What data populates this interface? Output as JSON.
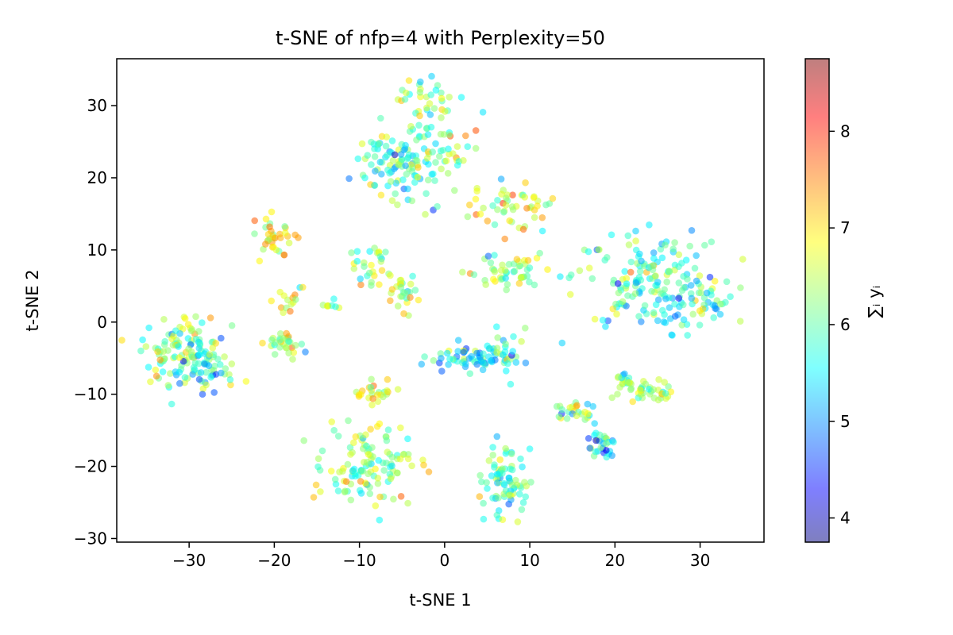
{
  "chart_data": {
    "type": "scatter",
    "title": "t-SNE of nfp=4 with Perplexity=50",
    "xlabel": "t-SNE 1",
    "ylabel": "t-SNE 2",
    "xlim": [
      -38.5,
      37.5
    ],
    "ylim": [
      -30.5,
      36.5
    ],
    "xticks": [
      -30,
      -20,
      -10,
      0,
      10,
      20,
      30
    ],
    "yticks": [
      -30,
      -20,
      -10,
      0,
      10,
      20,
      30
    ],
    "xtick_labels": [
      "−30",
      "−20",
      "−10",
      "0",
      "10",
      "20",
      "30"
    ],
    "ytick_labels": [
      "−30",
      "−20",
      "−10",
      "0",
      "10",
      "20",
      "30"
    ],
    "colorbar": {
      "label": "∑ᵢ yᵢ",
      "range": [
        3.75,
        8.75
      ],
      "ticks": [
        4,
        5,
        6,
        7,
        8
      ],
      "tick_labels": [
        "4",
        "5",
        "6",
        "7",
        "8"
      ],
      "colormap": "jet",
      "alpha": 0.5
    },
    "grid": false,
    "clusters": [
      {
        "cx": -2.5,
        "cy": 31,
        "sx": 1.5,
        "sy": 2.0,
        "n": 30,
        "c": 6.3
      },
      {
        "cx": -6,
        "cy": 22,
        "sx": 2.4,
        "sy": 2.5,
        "n": 90,
        "c": 5.9
      },
      {
        "cx": 0,
        "cy": 23,
        "sx": 2.2,
        "sy": 3.5,
        "n": 60,
        "c": 6.2
      },
      {
        "cx": 8,
        "cy": 16,
        "sx": 2.4,
        "sy": 1.7,
        "n": 50,
        "c": 6.6
      },
      {
        "cx": 7,
        "cy": 7,
        "sx": 2.4,
        "sy": 1.2,
        "n": 50,
        "c": 6.3
      },
      {
        "cx": 24,
        "cy": 6,
        "sx": 4.5,
        "sy": 3.5,
        "n": 170,
        "c": 5.9
      },
      {
        "cx": 30,
        "cy": 2.5,
        "sx": 2.2,
        "sy": 1.0,
        "n": 30,
        "c": 5.8
      },
      {
        "cx": -20,
        "cy": 11.5,
        "sx": 1.2,
        "sy": 1.6,
        "n": 35,
        "c": 6.7
      },
      {
        "cx": -18.5,
        "cy": 3.5,
        "sx": 1.0,
        "sy": 1.2,
        "n": 15,
        "c": 6.5
      },
      {
        "cx": -8.5,
        "cy": 7.5,
        "sx": 1.1,
        "sy": 1.6,
        "n": 30,
        "c": 6.3
      },
      {
        "cx": -5,
        "cy": 4.5,
        "sx": 0.9,
        "sy": 1.6,
        "n": 25,
        "c": 6.4
      },
      {
        "cx": -13.5,
        "cy": 2.3,
        "sx": 0.6,
        "sy": 0.4,
        "n": 8,
        "c": 6.2
      },
      {
        "cx": -31,
        "cy": -3.5,
        "sx": 2.3,
        "sy": 2.5,
        "n": 90,
        "c": 6.2
      },
      {
        "cx": -28,
        "cy": -6.5,
        "sx": 1.8,
        "sy": 1.6,
        "n": 60,
        "c": 5.9
      },
      {
        "cx": -19,
        "cy": -3,
        "sx": 1.1,
        "sy": 0.9,
        "n": 30,
        "c": 6.6
      },
      {
        "cx": 3,
        "cy": -5,
        "sx": 2.4,
        "sy": 0.9,
        "n": 60,
        "c": 5.5
      },
      {
        "cx": 7.5,
        "cy": -4.5,
        "sx": 1.2,
        "sy": 1.6,
        "n": 25,
        "c": 5.7
      },
      {
        "cx": -8,
        "cy": -10,
        "sx": 1.5,
        "sy": 0.7,
        "n": 25,
        "c": 6.6
      },
      {
        "cx": -9,
        "cy": -20,
        "sx": 2.5,
        "sy": 2.8,
        "n": 120,
        "c": 6.3
      },
      {
        "cx": 7,
        "cy": -22,
        "sx": 1.5,
        "sy": 2.2,
        "n": 80,
        "c": 5.8
      },
      {
        "cx": 15.5,
        "cy": -12.5,
        "sx": 1.3,
        "sy": 0.6,
        "n": 25,
        "c": 6.4
      },
      {
        "cx": 18.5,
        "cy": -17,
        "sx": 0.9,
        "sy": 1.5,
        "n": 30,
        "c": 5.6
      },
      {
        "cx": 21,
        "cy": -8,
        "sx": 0.9,
        "sy": 0.6,
        "n": 12,
        "c": 6.2
      },
      {
        "cx": 24,
        "cy": -9.5,
        "sx": 1.7,
        "sy": 0.9,
        "n": 40,
        "c": 6.5
      }
    ]
  }
}
